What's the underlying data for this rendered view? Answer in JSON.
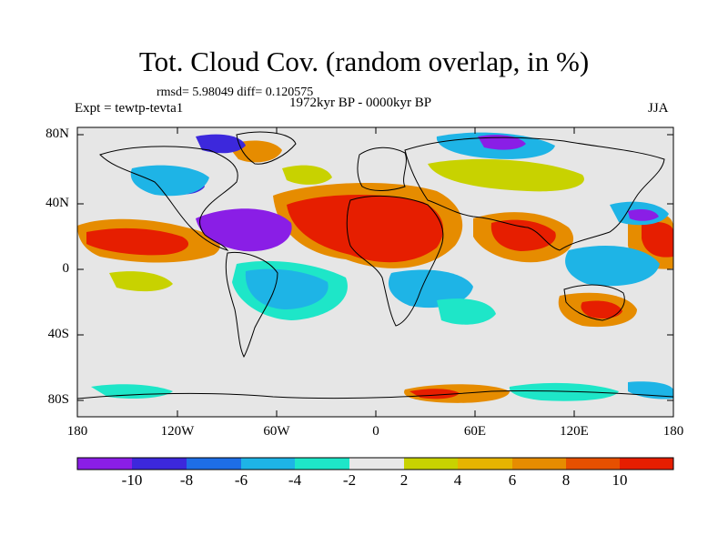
{
  "title": "Tot. Cloud Cov. (random overlap, in %)",
  "stats": "rmsd= 5.98049 diff= 0.120575",
  "experiment": "Expt = tewtp-tevta1",
  "period": "1972kyr BP - 0000kyr BP",
  "season": "JJA",
  "axes": {
    "lat_ticks": [
      "80N",
      "40N",
      "0",
      "40S",
      "80S"
    ],
    "lon_ticks": [
      "180",
      "120W",
      "60W",
      "0",
      "60E",
      "120E",
      "180"
    ]
  },
  "colorbar": {
    "labels": [
      "-10",
      "-8",
      "-6",
      "-4",
      "-2",
      "2",
      "4",
      "6",
      "8",
      "10"
    ],
    "colors": [
      "#8a1ee6",
      "#3c28dc",
      "#1e6ee6",
      "#1eb4e6",
      "#1ee6c8",
      "#e8e8e8",
      "#c8d200",
      "#e6b400",
      "#e68c00",
      "#e65000",
      "#e61e00"
    ]
  },
  "map_colors": {
    "neutral": "#e6e6e6",
    "coast": "#000000"
  }
}
